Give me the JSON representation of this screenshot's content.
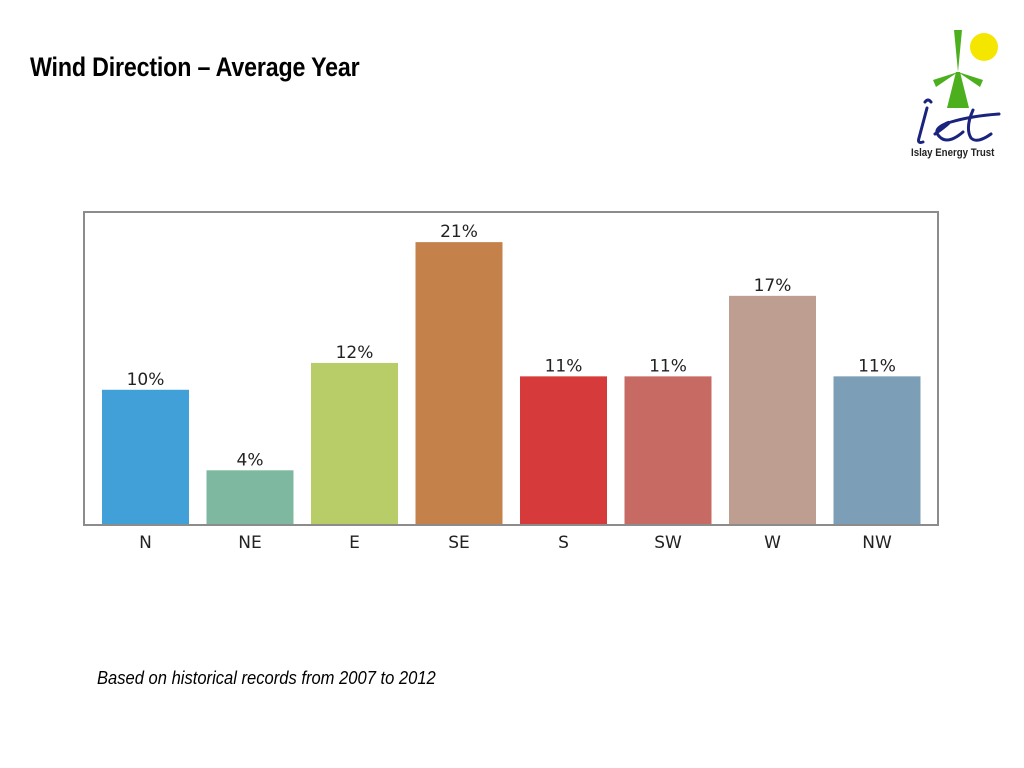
{
  "slide": {
    "title": "Wind Direction – Average Year",
    "footnote": "Based on historical records from 2007 to 2012"
  },
  "logo": {
    "text": "Islay Energy Trust",
    "mark": "iet",
    "icon": "wind-turbine-sun-icon",
    "colors": {
      "turbine": "#4caf1e",
      "sun": "#f5e600",
      "script": "#1a237e"
    }
  },
  "chart_data": {
    "type": "bar",
    "categories": [
      "N",
      "NE",
      "E",
      "SE",
      "S",
      "SW",
      "W",
      "NW"
    ],
    "values": [
      10,
      4,
      12,
      21,
      11,
      11,
      17,
      11
    ],
    "data_labels": [
      "10%",
      "4%",
      "12%",
      "21%",
      "11%",
      "11%",
      "17%",
      "11%"
    ],
    "colors": [
      "#42a0d8",
      "#7eb8a0",
      "#b8cc68",
      "#c5814a",
      "#d63a3a",
      "#c86a64",
      "#bf9e92",
      "#7c9eb6"
    ],
    "unit": "%",
    "title": "",
    "xlabel": "",
    "ylabel": "",
    "ylim": [
      0,
      22.5
    ],
    "grid": false,
    "legend": "none"
  }
}
